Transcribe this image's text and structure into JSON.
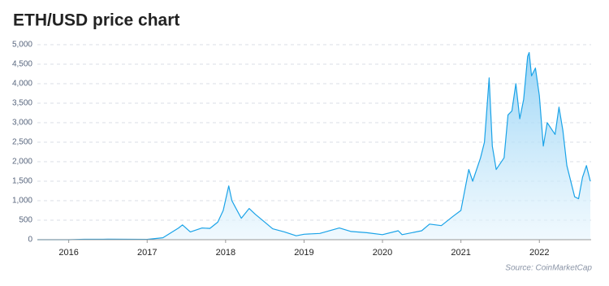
{
  "chart_data": {
    "type": "area",
    "title": "ETH/USD price chart",
    "source": "Source: CoinMarketCap",
    "color": "#1aa3e8",
    "grid": true,
    "x": [
      2015.6,
      2016.0,
      2016.2,
      2016.5,
      2017.0,
      2017.2,
      2017.4,
      2017.45,
      2017.55,
      2017.7,
      2017.8,
      2017.9,
      2017.97,
      2018.04,
      2018.08,
      2018.12,
      2018.2,
      2018.3,
      2018.38,
      2018.5,
      2018.6,
      2018.75,
      2018.9,
      2019.0,
      2019.2,
      2019.45,
      2019.6,
      2019.8,
      2020.0,
      2020.2,
      2020.25,
      2020.5,
      2020.6,
      2020.75,
      2020.9,
      2021.0,
      2021.1,
      2021.15,
      2021.25,
      2021.3,
      2021.36,
      2021.4,
      2021.45,
      2021.55,
      2021.6,
      2021.65,
      2021.7,
      2021.75,
      2021.8,
      2021.85,
      2021.87,
      2021.9,
      2021.95,
      2022.0,
      2022.05,
      2022.1,
      2022.2,
      2022.25,
      2022.3,
      2022.35,
      2022.45,
      2022.5,
      2022.55,
      2022.6,
      2022.65
    ],
    "values": [
      1,
      1,
      10,
      12,
      8,
      50,
      300,
      380,
      200,
      300,
      290,
      450,
      750,
      1380,
      1000,
      850,
      550,
      800,
      650,
      450,
      280,
      200,
      100,
      140,
      160,
      300,
      210,
      180,
      130,
      230,
      130,
      230,
      400,
      360,
      600,
      750,
      1800,
      1500,
      2100,
      2500,
      4150,
      2400,
      1800,
      2100,
      3200,
      3300,
      4000,
      3100,
      3600,
      4700,
      4800,
      4200,
      4400,
      3700,
      2400,
      3000,
      2700,
      3400,
      2800,
      1900,
      1100,
      1050,
      1600,
      1900,
      1500
    ],
    "xlim": [
      2015.6,
      2022.66
    ],
    "xticks": [
      2016,
      2017,
      2018,
      2019,
      2020,
      2021,
      2022
    ],
    "ylim": [
      0,
      5000
    ],
    "yticks": [
      0,
      500,
      {
        "value": 1000,
        "label": "1,000"
      },
      {
        "value": 1500,
        "label": "1,500"
      },
      {
        "value": 2000,
        "label": "2,000"
      },
      {
        "value": 2500,
        "label": "2,500"
      },
      {
        "value": 3000,
        "label": "3,000"
      },
      {
        "value": 3500,
        "label": "3,500"
      },
      {
        "value": 4000,
        "label": "4,000"
      },
      {
        "value": 4500,
        "label": "4,500"
      },
      {
        "value": 5000,
        "label": "5,000"
      }
    ]
  }
}
